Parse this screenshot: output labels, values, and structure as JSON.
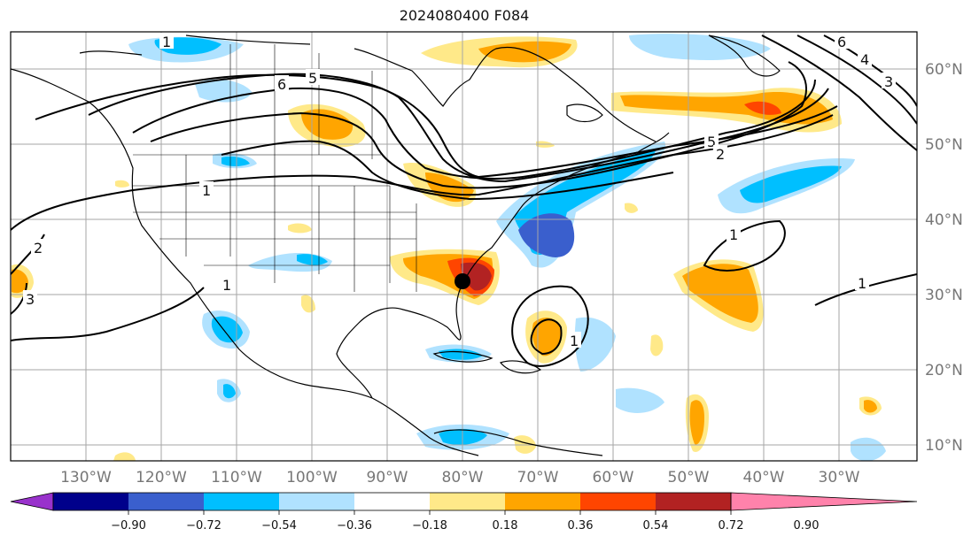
{
  "title": "2024080400 F084",
  "lon_labels": [
    "130°W",
    "120°W",
    "110°W",
    "100°W",
    "90°W",
    "80°W",
    "70°W",
    "60°W",
    "50°W",
    "40°W",
    "30°W"
  ],
  "lat_labels": [
    "60°N",
    "50°N",
    "40°N",
    "30°N",
    "20°N",
    "10°N"
  ],
  "colorbar": {
    "ticks": [
      "−0.90",
      "−0.72",
      "−0.54",
      "−0.36",
      "−0.18",
      "0.18",
      "0.36",
      "0.54",
      "0.72",
      "0.90"
    ],
    "colors": [
      "#9932CC",
      "#00008B",
      "#3A5FCD",
      "#00BFFF",
      "#B0E2FF",
      "#FFFFFF",
      "#FFE989",
      "#FFA500",
      "#FF4500",
      "#B22222",
      "#FF82AB"
    ]
  },
  "contour_labels": [
    "1",
    "6",
    "5",
    "6",
    "4",
    "3",
    "5",
    "2",
    "1",
    "2",
    "3",
    "1",
    "1",
    "1",
    "1"
  ],
  "marker": {
    "lon": "80°W",
    "lat": "32°N"
  }
}
